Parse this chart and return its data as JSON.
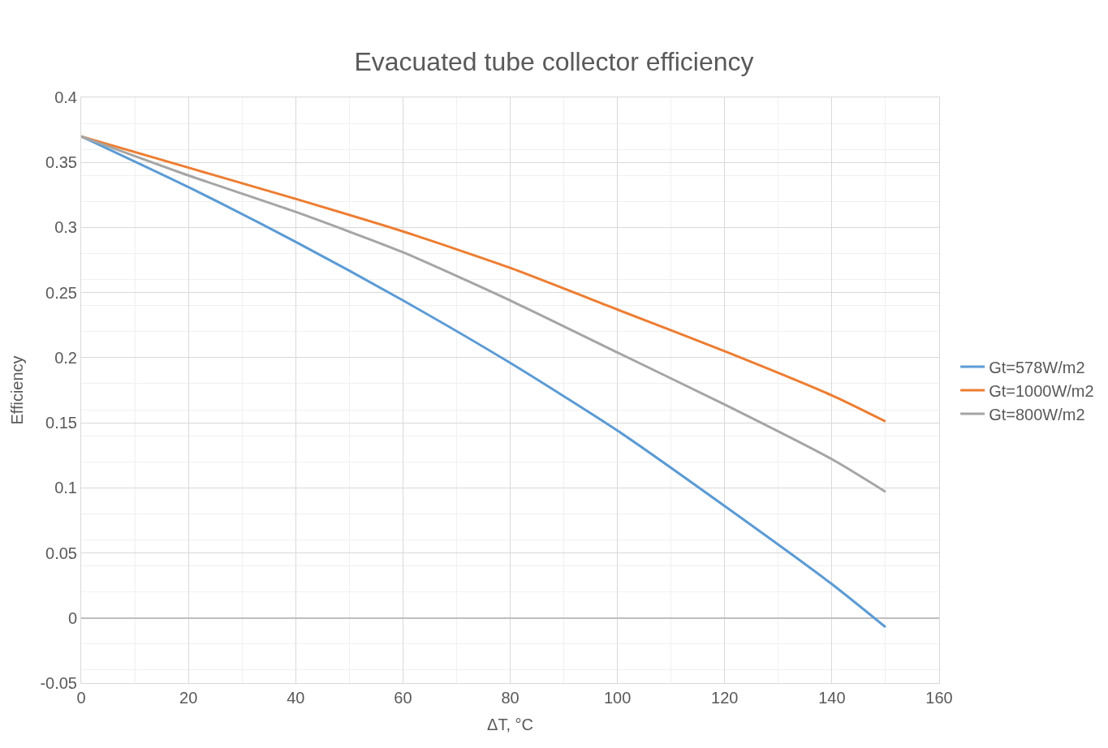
{
  "chart_data": {
    "type": "line",
    "title": "Evacuated tube collector efficiency",
    "xlabel": "ΔT, °C",
    "ylabel": "Efficiency",
    "x": [
      0,
      20,
      40,
      60,
      80,
      100,
      120,
      140,
      150
    ],
    "series": [
      {
        "name": "Gt=578W/m2",
        "color": "#5b9bd5",
        "values": [
          0.37,
          0.331,
          0.289,
          0.244,
          0.196,
          0.144,
          0.086,
          0.026,
          -0.007
        ]
      },
      {
        "name": "Gt=1000W/m2",
        "color": "#ed7d31",
        "values": [
          0.37,
          0.346,
          0.322,
          0.297,
          0.269,
          0.237,
          0.205,
          0.171,
          0.151
        ]
      },
      {
        "name": "Gt=800W/m2",
        "color": "#a5a5a5",
        "values": [
          0.37,
          0.34,
          0.312,
          0.281,
          0.244,
          0.204,
          0.164,
          0.122,
          0.097
        ]
      }
    ],
    "xlim": [
      0,
      160
    ],
    "xticks": [
      0,
      20,
      40,
      60,
      80,
      100,
      120,
      140,
      160
    ],
    "ylim": [
      -0.05,
      0.4
    ],
    "yticks": [
      -0.05,
      0,
      0.05,
      0.1,
      0.15,
      0.2,
      0.25,
      0.3,
      0.35,
      0.4
    ],
    "grid": true,
    "legend": "right",
    "marker": "none",
    "line_style": "solid"
  }
}
